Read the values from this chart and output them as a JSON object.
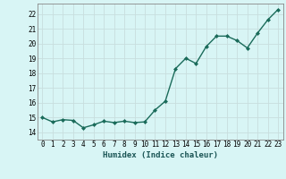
{
  "x": [
    0,
    1,
    2,
    3,
    4,
    5,
    6,
    7,
    8,
    9,
    10,
    11,
    12,
    13,
    14,
    15,
    16,
    17,
    18,
    19,
    20,
    21,
    22,
    23
  ],
  "y": [
    15.0,
    14.7,
    14.85,
    14.8,
    14.3,
    14.5,
    14.75,
    14.65,
    14.75,
    14.65,
    14.7,
    15.5,
    16.1,
    18.3,
    19.0,
    18.65,
    19.8,
    20.5,
    20.5,
    20.2,
    19.7,
    20.7,
    21.6,
    22.3
  ],
  "line_color": "#1a6b5a",
  "marker": "D",
  "marker_size": 2.0,
  "bg_color": "#d8f5f5",
  "grid_major_color": "#c8dede",
  "grid_minor_color": "#dce8e8",
  "xlabel": "Humidex (Indice chaleur)",
  "xlim": [
    -0.5,
    23.5
  ],
  "ylim": [
    13.5,
    22.7
  ],
  "yticks": [
    14,
    15,
    16,
    17,
    18,
    19,
    20,
    21,
    22
  ],
  "xticks": [
    0,
    1,
    2,
    3,
    4,
    5,
    6,
    7,
    8,
    9,
    10,
    11,
    12,
    13,
    14,
    15,
    16,
    17,
    18,
    19,
    20,
    21,
    22,
    23
  ],
  "tick_fontsize": 5.5,
  "label_fontsize": 6.5,
  "line_width": 1.0
}
